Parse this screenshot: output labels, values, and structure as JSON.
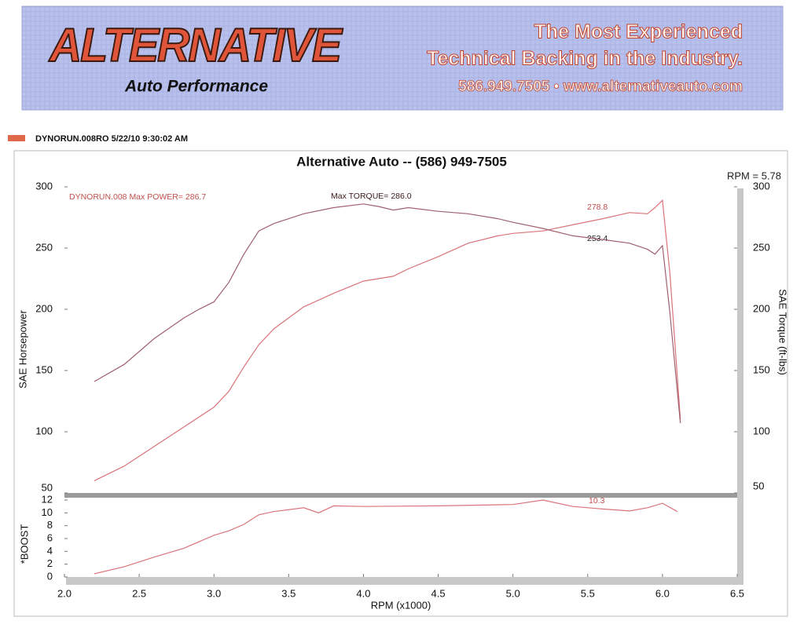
{
  "header": {
    "logo": "ALTERNATIVE",
    "logo_sub": "Auto Performance",
    "tagline_1": "The Most Experienced",
    "tagline_2": "Technical Backing in the Industry.",
    "contact": "586.949.7505  •  www.alternativeauto.com"
  },
  "run_label": "DYNORUN.008RO  5/22/10 9:30:02 AM",
  "chart_data": [
    {
      "type": "line",
      "title": "Alternative Auto -- (586) 949-7505",
      "y_label": "SAE Horsepower",
      "y2_label": "SAE Torque (ft-lbs)",
      "annotations": {
        "max_power": "DYNORUN.008  Max POWER= 286.7",
        "max_torque": "Max TORQUE= 286.0",
        "hp_at_cursor": "278.8",
        "torque_at_cursor": "253.4",
        "cursor": "RPM = 5.78"
      },
      "xlim": [
        2.0,
        6.5
      ],
      "ylim": [
        50,
        300
      ],
      "yticks": [
        50,
        100,
        150,
        200,
        250,
        300
      ],
      "y2lim": [
        50,
        300
      ],
      "y2ticks": [
        50,
        100,
        150,
        200,
        250,
        300
      ],
      "run_color": "#e0684a",
      "series": [
        {
          "color": "#d9737a",
          "x": [
            2.2,
            2.4,
            2.6,
            2.8,
            3.0,
            3.1,
            3.2,
            3.3,
            3.4,
            3.6,
            3.8,
            4.0,
            4.2,
            4.3,
            4.5,
            4.7,
            4.9,
            5.0,
            5.2,
            5.4,
            5.6,
            5.78,
            5.9,
            5.95,
            6.0,
            6.05,
            6.12
          ],
          "values": [
            60,
            72,
            88,
            104,
            120,
            133,
            153,
            171,
            184,
            202,
            213,
            223,
            227,
            233,
            243,
            254,
            260,
            262,
            264,
            269,
            274,
            279,
            278,
            283,
            289,
            229,
            110
          ]
        },
        {
          "color": "#a0606e",
          "axis": "y2",
          "x": [
            2.2,
            2.4,
            2.6,
            2.8,
            2.9,
            3.0,
            3.1,
            3.2,
            3.3,
            3.4,
            3.6,
            3.8,
            4.0,
            4.1,
            4.2,
            4.3,
            4.5,
            4.7,
            4.9,
            5.0,
            5.2,
            5.4,
            5.6,
            5.78,
            5.9,
            5.95,
            6.0,
            6.05,
            6.12
          ],
          "values": [
            141,
            155,
            176,
            193,
            200,
            206,
            222,
            245,
            264,
            270,
            278,
            283,
            286,
            284,
            281,
            283,
            280,
            278,
            274,
            271,
            266,
            260,
            257,
            254,
            249,
            245,
            252,
            197,
            107
          ]
        }
      ]
    },
    {
      "type": "line",
      "y_label": "*BOOST",
      "x_label": "RPM (x1000)",
      "annotations": {
        "boost_at_cursor": "10.3"
      },
      "xlim": [
        2.0,
        6.5
      ],
      "xticks": [
        {
          "value": 2,
          "label": "2.0"
        },
        2.5,
        {
          "value": 3,
          "label": "3.0"
        },
        3.5,
        {
          "value": 4,
          "label": "4.0"
        },
        4.5,
        {
          "value": 5,
          "label": "5.0"
        },
        5.5,
        {
          "value": 6,
          "label": "6.0"
        },
        6.5
      ],
      "ylim": [
        0,
        12
      ],
      "yticks": [
        0,
        2,
        4,
        6,
        8,
        10,
        12
      ],
      "series": [
        {
          "color": "#d9737a",
          "x": [
            2.2,
            2.4,
            2.6,
            2.8,
            3.0,
            3.1,
            3.2,
            3.3,
            3.4,
            3.6,
            3.7,
            3.8,
            4.0,
            4.5,
            5.0,
            5.2,
            5.4,
            5.6,
            5.78,
            5.9,
            6.0,
            6.1
          ],
          "values": [
            0.5,
            1.6,
            3.1,
            4.5,
            6.5,
            7.2,
            8.2,
            9.7,
            10.2,
            10.8,
            10.0,
            11.1,
            11.0,
            11.1,
            11.3,
            12.0,
            11.0,
            10.6,
            10.3,
            10.8,
            11.5,
            10.2
          ]
        }
      ]
    }
  ]
}
